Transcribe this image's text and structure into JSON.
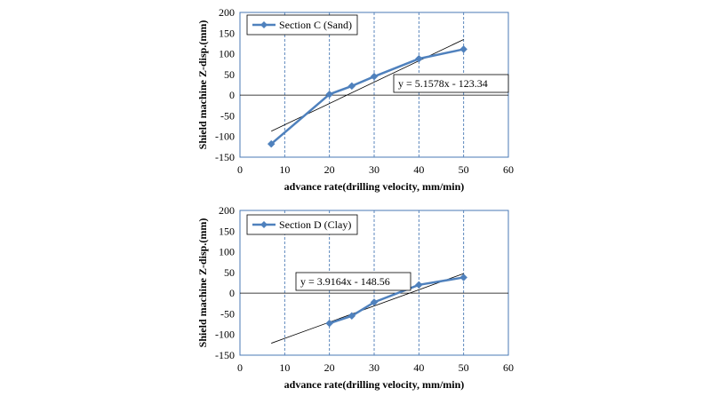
{
  "chart_data": [
    {
      "type": "line",
      "series": [
        {
          "name": "Section C (Sand)",
          "x": [
            7,
            20,
            25,
            30,
            40,
            50
          ],
          "y": [
            -118,
            2,
            22,
            45,
            88,
            111
          ],
          "color": "#4F81BD"
        }
      ],
      "trendline": {
        "slope": 5.1578,
        "intercept": -123.34,
        "label": "y = 5.1578x - 123.34"
      },
      "xlabel": "advance rate(drilling velocity,  mm/min)",
      "ylabel": "Shield machine Z-disp.(mm)",
      "xlim": [
        0,
        60
      ],
      "ylim": [
        -150,
        200
      ],
      "xticks": [
        "0",
        "10",
        "20",
        "30",
        "40",
        "50",
        "60"
      ],
      "yticks": [
        "200",
        "150",
        "100",
        "50",
        "0",
        "-50",
        "-100",
        "-150"
      ],
      "grid": "vertical dashed",
      "legend": "top-left"
    },
    {
      "type": "line",
      "series": [
        {
          "name": "Section D (Clay)",
          "x": [
            20,
            25,
            30,
            40,
            50
          ],
          "y": [
            -73,
            -55,
            -22,
            20,
            38
          ],
          "color": "#4F81BD"
        }
      ],
      "trendline": {
        "slope": 3.9164,
        "intercept": -148.56,
        "label": "y = 3.9164x - 148.56"
      },
      "xlabel": "advance rate(drilling velocity,  mm/min)",
      "ylabel": "Shield machine Z-disp.(mm)",
      "xlim": [
        0,
        60
      ],
      "ylim": [
        -150,
        200
      ],
      "xticks": [
        "0",
        "10",
        "20",
        "30",
        "40",
        "50",
        "60"
      ],
      "yticks": [
        "200",
        "150",
        "100",
        "50",
        "0",
        "-50",
        "-100",
        "-150"
      ],
      "grid": "vertical dashed",
      "legend": "top-left"
    }
  ]
}
